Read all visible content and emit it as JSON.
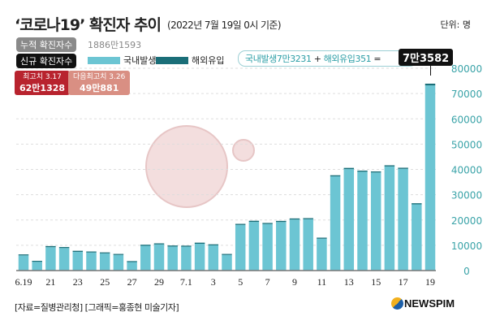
{
  "header": {
    "title": "‘코로나19’ 확진자 추이",
    "subtitle": "(2022년 7월 19일 0시 기준)",
    "unit": "단위: 명"
  },
  "cumulative": {
    "label": "누적 확진자수",
    "value": "1886만1593"
  },
  "new_cases": {
    "label": "신규 확진자수"
  },
  "formula": {
    "domestic": "국내발생7만3231",
    "plus": " + ",
    "overseas": "해외유입351",
    "eq": " =",
    "total": "7만3582"
  },
  "peaks": [
    {
      "label": "최고치 3.17",
      "value": "62만1328"
    },
    {
      "label": "다음최고치 3.26",
      "value": "49만881"
    }
  ],
  "footer": {
    "source": "[자료=질병관리청] [그래픽=홍종현 미술기자]",
    "logo": "NEWSPIM"
  },
  "colors": {
    "domestic": "#6cc5d3",
    "overseas": "#1a6e78",
    "axis_label": "#3aa3a8"
  },
  "chart_data": {
    "type": "bar",
    "stacked": true,
    "title": "‘코로나19’ 확진자 추이",
    "ylim": [
      0,
      80000
    ],
    "yticks": [
      "0",
      "10000",
      "20000",
      "30000",
      "40000",
      "50000",
      "60000",
      "70000",
      "80000"
    ],
    "xtick_labels": [
      "6.19",
      "21",
      "23",
      "25",
      "27",
      "29",
      "7.1",
      "3",
      "5",
      "7",
      "9",
      "11",
      "13",
      "15",
      "17",
      "19"
    ],
    "categories": [
      "6.19",
      "6.20",
      "6.21",
      "6.22",
      "6.23",
      "6.24",
      "6.25",
      "6.26",
      "6.27",
      "6.28",
      "6.29",
      "6.30",
      "7.1",
      "7.2",
      "7.3",
      "7.4",
      "7.5",
      "7.6",
      "7.7",
      "7.8",
      "7.9",
      "7.10",
      "7.11",
      "7.12",
      "7.13",
      "7.14",
      "7.15",
      "7.16",
      "7.17",
      "7.18",
      "7.19"
    ],
    "series": [
      {
        "name": "국내발생",
        "values": [
          6000,
          3450,
          9250,
          8900,
          7400,
          7150,
          6800,
          6180,
          3360,
          9800,
          10350,
          9500,
          9450,
          10600,
          9980,
          6200,
          18050,
          19250,
          18400,
          19200,
          20180,
          20300,
          12600,
          37250,
          40120,
          39080,
          38780,
          41180,
          40220,
          26190,
          73231
        ]
      },
      {
        "name": "해외유입",
        "values": [
          70,
          80,
          110,
          80,
          100,
          70,
          70,
          70,
          60,
          90,
          100,
          90,
          80,
          110,
          80,
          50,
          100,
          120,
          110,
          120,
          110,
          110,
          90,
          110,
          150,
          120,
          100,
          130,
          120,
          110,
          351
        ]
      }
    ],
    "legend": "top-left",
    "grid": true
  }
}
